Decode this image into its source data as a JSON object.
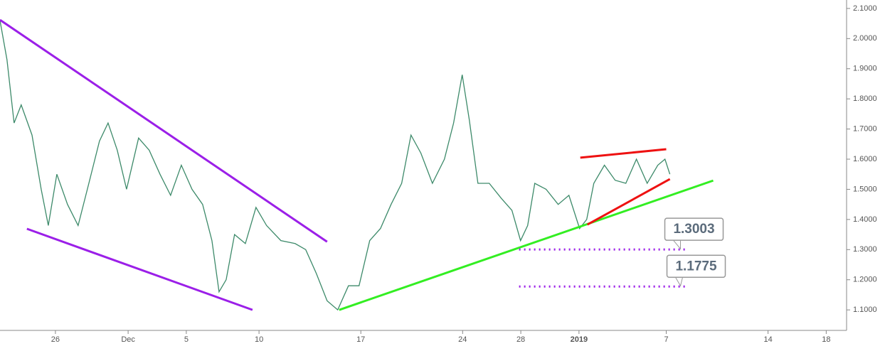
{
  "chart_data": {
    "type": "line",
    "xlim": [
      -3.81,
      54.4
    ],
    "ylim": [
      1.032,
      2.128
    ],
    "xticks": [
      {
        "value": 0,
        "label": "26"
      },
      {
        "value": 5,
        "label": "Dec"
      },
      {
        "value": 9,
        "label": "5"
      },
      {
        "value": 14,
        "label": "10"
      },
      {
        "value": 21,
        "label": "17"
      },
      {
        "value": 28,
        "label": "24"
      },
      {
        "value": 32,
        "label": "28"
      },
      {
        "value": 36,
        "label": "2019"
      },
      {
        "value": 42,
        "label": "7"
      },
      {
        "value": 49,
        "label": "14"
      },
      {
        "value": 53,
        "label": "18"
      }
    ],
    "yticks": [
      {
        "value": 2.1,
        "label": "2.1000"
      },
      {
        "value": 2.0,
        "label": "2.0000"
      },
      {
        "value": 1.9,
        "label": "1.9000"
      },
      {
        "value": 1.8,
        "label": "1.8000"
      },
      {
        "value": 1.7,
        "label": "1.7000"
      },
      {
        "value": 1.6,
        "label": "1.6000"
      },
      {
        "value": 1.5,
        "label": "1.5000"
      },
      {
        "value": 1.4,
        "label": "1.4000"
      },
      {
        "value": 1.3,
        "label": "1.3000"
      },
      {
        "value": 1.2,
        "label": "1.2000"
      },
      {
        "value": 1.1,
        "label": "1.1000"
      }
    ],
    "series": [
      {
        "color": "#3d8a6a",
        "x": [
          -3.81,
          -3.33,
          -2.84,
          -2.35,
          -1.61,
          -0.98,
          -0.49,
          0.1,
          0.83,
          1.56,
          2.3,
          3.03,
          3.62,
          4.25,
          4.89,
          5.72,
          6.45,
          7.19,
          7.92,
          8.66,
          9.39,
          10.12,
          10.76,
          11.25,
          11.74,
          12.32,
          13.06,
          13.79,
          14.52,
          15.5,
          16.48,
          17.21,
          17.95,
          18.68,
          19.41,
          20.15,
          20.88,
          21.61,
          22.35,
          23.08,
          23.81,
          24.45,
          25.13,
          25.92,
          26.75,
          27.38,
          27.97,
          28.46,
          29.05,
          29.83,
          30.66,
          31.39,
          31.98,
          32.47,
          32.96,
          33.74,
          34.57,
          35.31,
          36.04,
          36.53,
          37.02,
          37.75,
          38.49,
          39.22,
          39.95,
          40.69,
          41.42,
          41.91,
          42.25
        ],
        "values": [
          2.06,
          1.93,
          1.72,
          1.78,
          1.68,
          1.5,
          1.38,
          1.55,
          1.45,
          1.38,
          1.52,
          1.66,
          1.72,
          1.63,
          1.5,
          1.67,
          1.63,
          1.55,
          1.48,
          1.58,
          1.5,
          1.45,
          1.33,
          1.16,
          1.2,
          1.35,
          1.32,
          1.44,
          1.38,
          1.33,
          1.32,
          1.3,
          1.22,
          1.13,
          1.1,
          1.18,
          1.18,
          1.33,
          1.37,
          1.45,
          1.52,
          1.68,
          1.62,
          1.52,
          1.6,
          1.72,
          1.88,
          1.73,
          1.52,
          1.52,
          1.47,
          1.43,
          1.33,
          1.38,
          1.52,
          1.5,
          1.45,
          1.48,
          1.37,
          1.4,
          1.52,
          1.58,
          1.53,
          1.52,
          1.6,
          1.52,
          1.58,
          1.6,
          1.55
        ]
      }
    ],
    "trendlines": [
      {
        "color": "#9b1fe8",
        "x": [
          -3.81,
          18.68
        ],
        "values": [
          2.062,
          1.326
        ]
      },
      {
        "color": "#9b1fe8",
        "x": [
          -1.96,
          13.55
        ],
        "values": [
          1.369,
          1.1
        ]
      },
      {
        "color": "#33ee22",
        "x": [
          19.51,
          45.23
        ],
        "values": [
          1.1,
          1.529
        ]
      },
      {
        "color": "#ee1111",
        "x": [
          36.09,
          42.0
        ],
        "values": [
          1.605,
          1.633
        ]
      },
      {
        "color": "#ee1111",
        "x": [
          36.58,
          42.25
        ],
        "values": [
          1.383,
          1.534
        ]
      }
    ],
    "levels": [
      {
        "color": "#9b1fe8",
        "value": 1.3003,
        "x": [
          31.88,
          43.37
        ]
      },
      {
        "color": "#9b1fe8",
        "value": 1.1775,
        "x": [
          31.88,
          43.37
        ]
      }
    ]
  }
}
